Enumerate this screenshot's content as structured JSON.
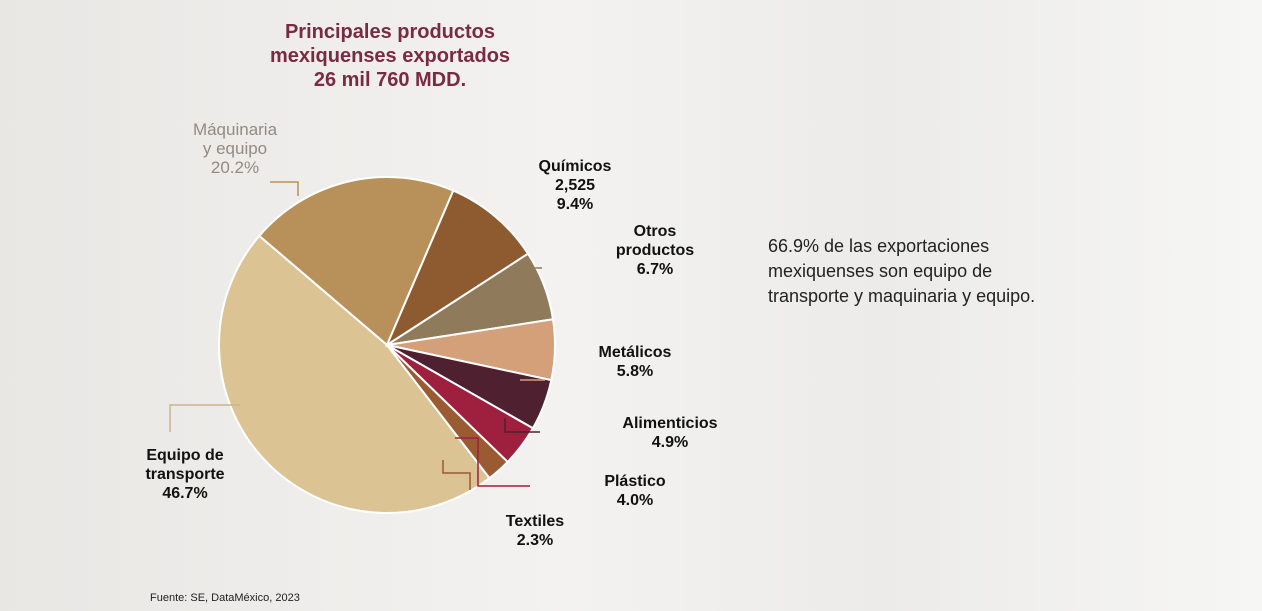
{
  "chart_data": {
    "type": "pie",
    "title": "Principales productos\nmexiquenses exportados\n26 mil 760 MDD.",
    "categories": [
      "Equipo de\ntransporte",
      "Máquinaria\ny equipo",
      "Químicos",
      "Otros\nproductos",
      "Metálicos",
      "Alimenticios",
      "Plástico",
      "Textiles"
    ],
    "values": [
      46.7,
      20.2,
      9.4,
      6.7,
      5.8,
      4.9,
      4.0,
      2.3
    ],
    "value_labels": [
      "46.7%",
      "20.2%",
      "9.4%",
      "6.7%",
      "5.8%",
      "4.9%",
      "4.0%",
      "2.3%"
    ],
    "colors": [
      "#dcc394",
      "#b8915a",
      "#8e5a30",
      "#8f7a5c",
      "#d4a07a",
      "#4f2030",
      "#9e1f3e",
      "#9a5a32"
    ],
    "annotation": "2,525",
    "note": "66.9% de las exportaciones mexiquenses son  equipo de transporte y maquinaria y equipo.",
    "source": "Fuente: SE, DataMéxico, 2023"
  }
}
